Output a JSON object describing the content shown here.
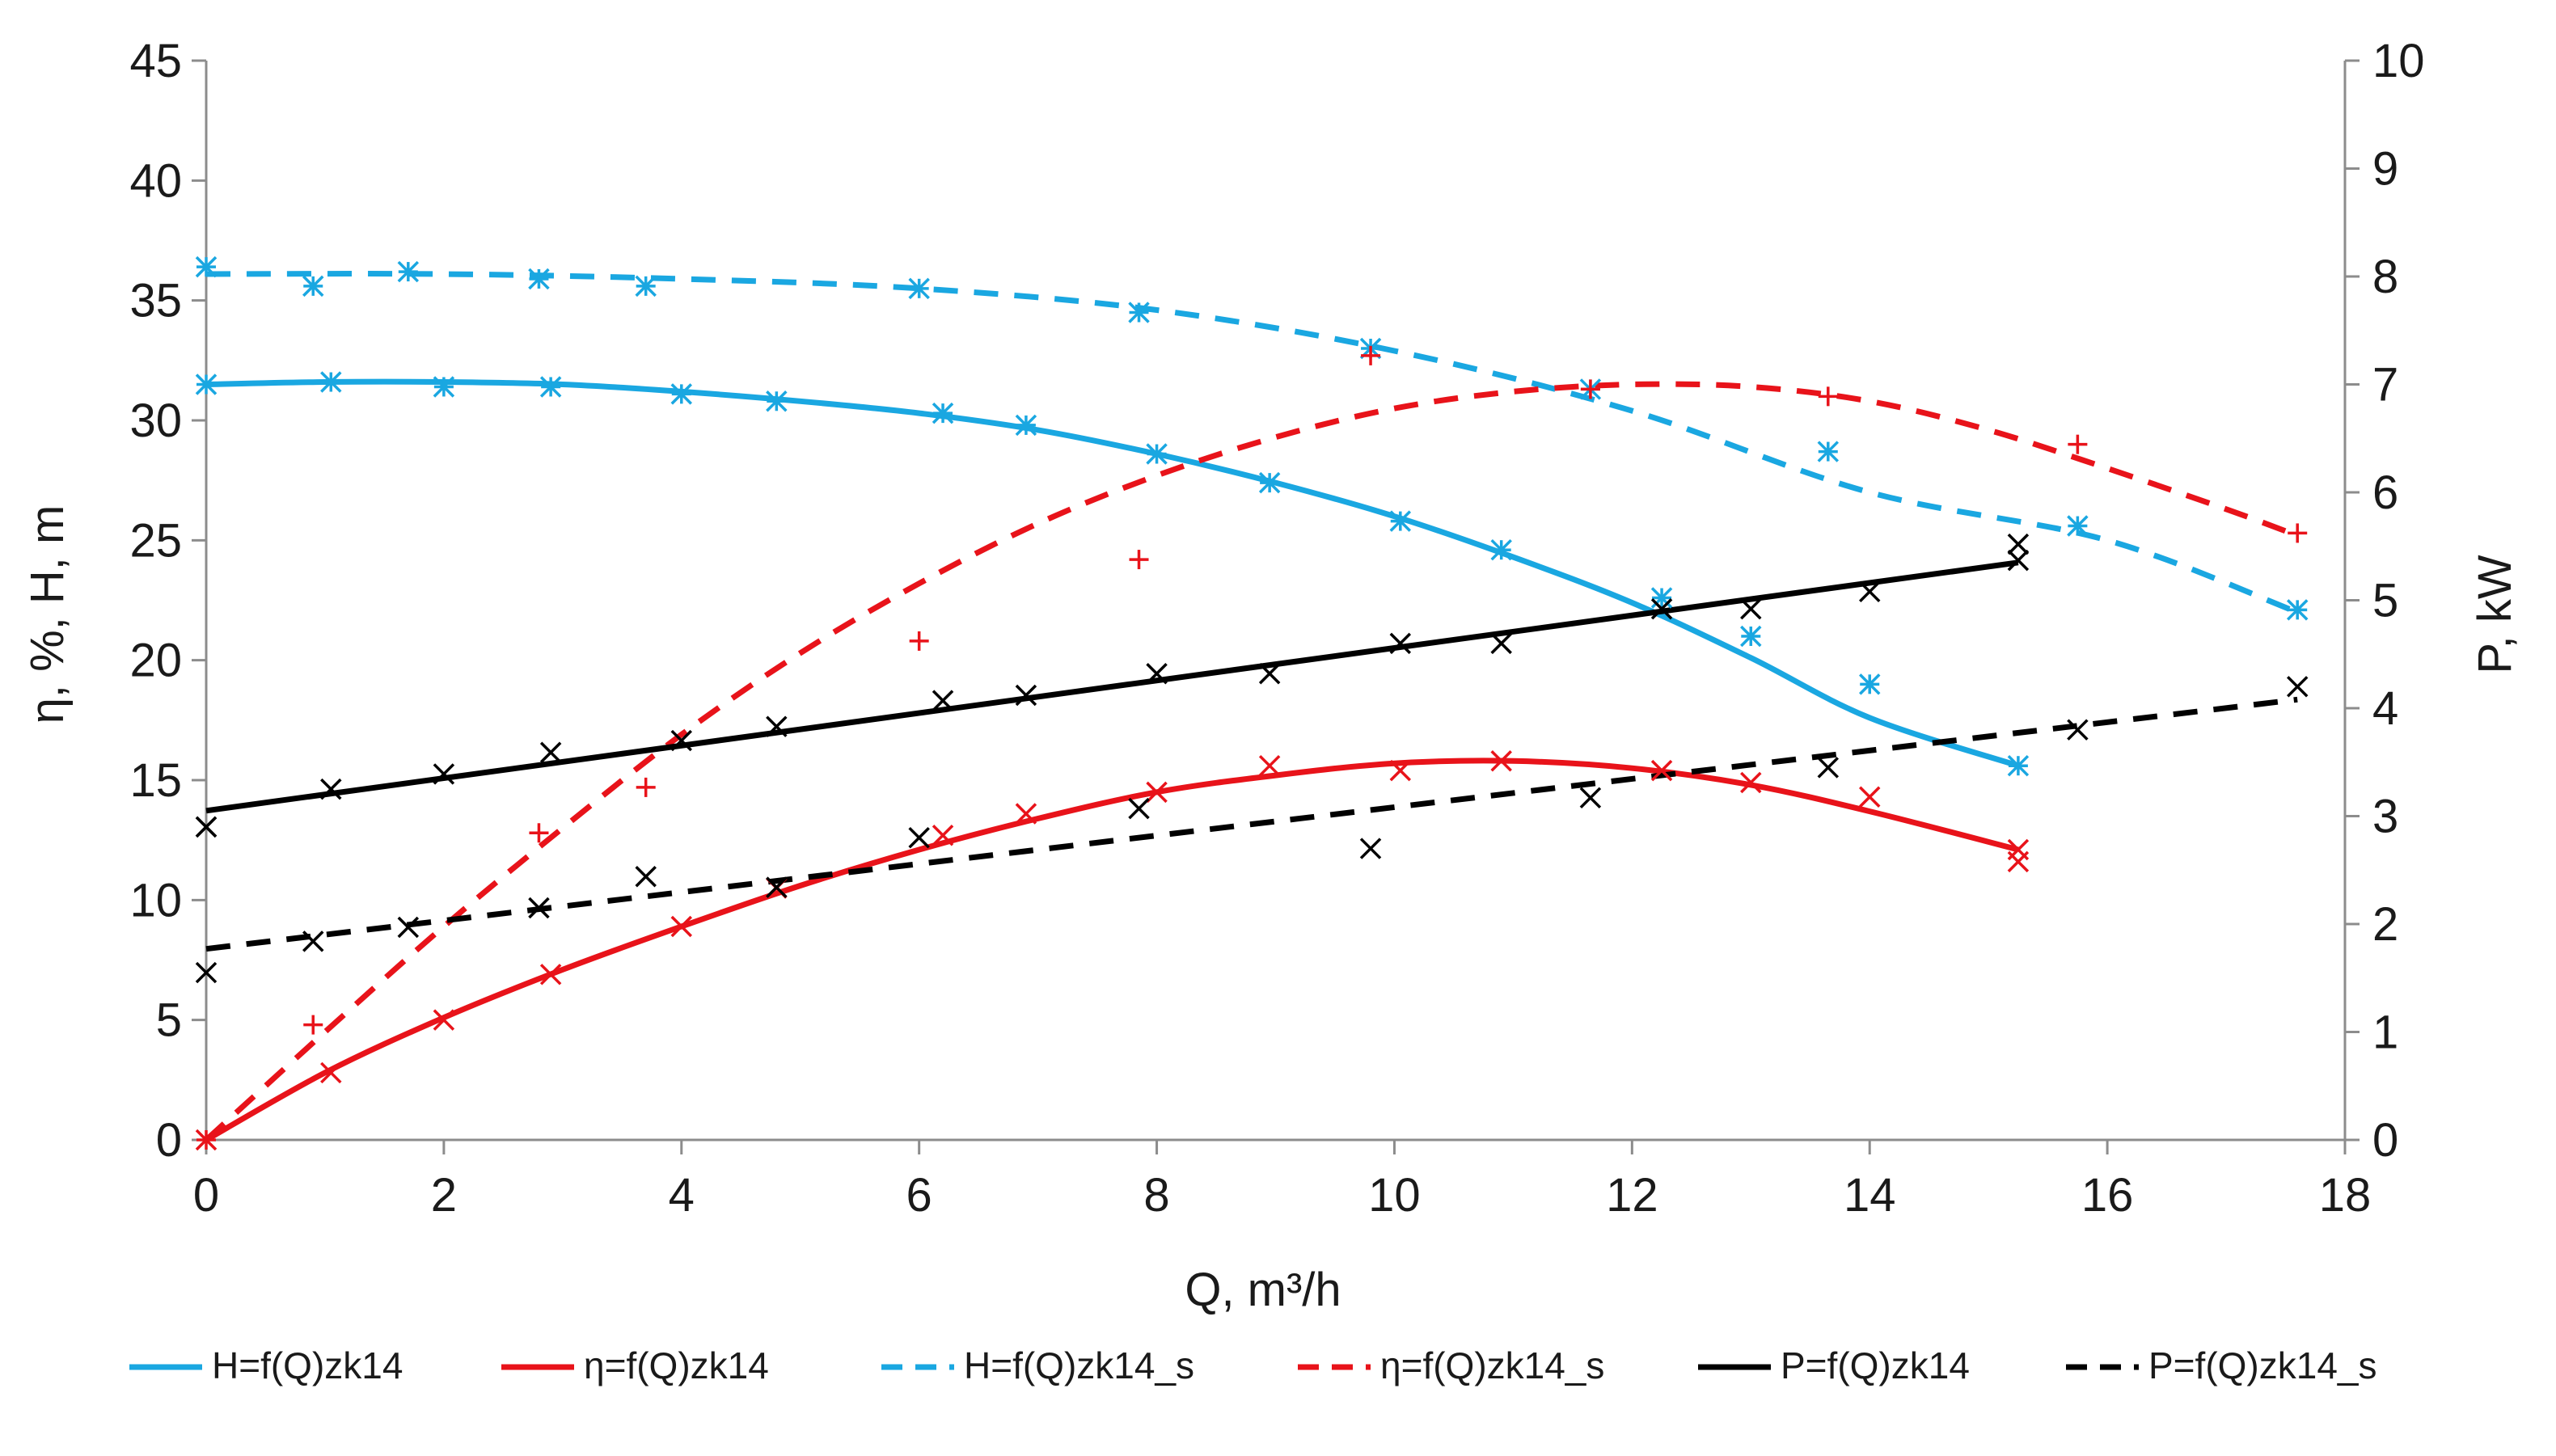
{
  "chart_data": {
    "type": "line",
    "title": "",
    "xlabel": "Q, m³/h",
    "ylabel_left": "η, %,  H, m",
    "ylabel_right": "P, kW",
    "xlim": [
      0,
      18
    ],
    "ylim_left": [
      0,
      45
    ],
    "ylim_right": [
      0,
      10
    ],
    "x_ticks": [
      0,
      2,
      4,
      6,
      8,
      10,
      12,
      14,
      16,
      18
    ],
    "y_left_ticks": [
      0,
      5,
      10,
      15,
      20,
      25,
      30,
      35,
      40,
      45
    ],
    "y_right_ticks": [
      0,
      1,
      2,
      3,
      4,
      5,
      6,
      7,
      8,
      9,
      10
    ],
    "grid": false,
    "legend_position": "bottom",
    "series": [
      {
        "name": "H=f(Q)zk14",
        "axis": "left",
        "color": "#1aa7e1",
        "dash": "solid",
        "marker": "asterisk",
        "curve": [
          [
            0,
            31.5
          ],
          [
            1,
            31.6
          ],
          [
            2,
            31.6
          ],
          [
            3,
            31.5
          ],
          [
            4,
            31.2
          ],
          [
            5,
            30.8
          ],
          [
            6,
            30.3
          ],
          [
            7,
            29.6
          ],
          [
            8,
            28.6
          ],
          [
            9,
            27.4
          ],
          [
            10,
            26.0
          ],
          [
            11,
            24.3
          ],
          [
            12,
            22.4
          ],
          [
            13,
            20.1
          ],
          [
            14,
            17.6
          ],
          [
            15.25,
            15.6
          ]
        ],
        "points": [
          [
            0,
            31.5
          ],
          [
            1.05,
            31.6
          ],
          [
            2,
            31.4
          ],
          [
            2.9,
            31.4
          ],
          [
            4,
            31.1
          ],
          [
            4.8,
            30.8
          ],
          [
            6.2,
            30.3
          ],
          [
            6.9,
            29.8
          ],
          [
            8,
            28.6
          ],
          [
            8.95,
            27.4
          ],
          [
            10.05,
            25.8
          ],
          [
            10.9,
            24.6
          ],
          [
            12.25,
            22.6
          ],
          [
            13,
            21
          ],
          [
            14,
            19
          ],
          [
            15.25,
            15.6
          ]
        ]
      },
      {
        "name": "η=f(Q)zk14",
        "axis": "left",
        "color": "#e8131a",
        "dash": "solid",
        "marker": "x",
        "curve": [
          [
            0,
            0
          ],
          [
            1,
            2.8
          ],
          [
            2,
            5.1
          ],
          [
            3,
            7.1
          ],
          [
            4,
            8.9
          ],
          [
            5,
            10.6
          ],
          [
            6,
            12.1
          ],
          [
            7,
            13.4
          ],
          [
            8,
            14.5
          ],
          [
            9,
            15.2
          ],
          [
            10,
            15.7
          ],
          [
            11,
            15.8
          ],
          [
            12,
            15.5
          ],
          [
            13,
            14.8
          ],
          [
            14,
            13.7
          ],
          [
            15.25,
            12.1
          ]
        ],
        "points": [
          [
            0,
            0
          ],
          [
            1.05,
            2.8
          ],
          [
            2,
            5
          ],
          [
            2.9,
            6.9
          ],
          [
            4,
            8.9
          ],
          [
            4.8,
            10.5
          ],
          [
            6.2,
            12.7
          ],
          [
            6.9,
            13.6
          ],
          [
            8,
            14.5
          ],
          [
            8.95,
            15.6
          ],
          [
            10.05,
            15.4
          ],
          [
            10.9,
            15.8
          ],
          [
            12.25,
            15.4
          ],
          [
            13,
            14.9
          ],
          [
            14,
            14.3
          ],
          [
            15.25,
            11.6
          ],
          [
            15.25,
            12.1
          ]
        ]
      },
      {
        "name": "H=f(Q)zk14_s",
        "axis": "left",
        "color": "#1aa7e1",
        "dash": "dashed",
        "marker": "asterisk",
        "curve": [
          [
            0,
            36.1
          ],
          [
            2,
            36.1
          ],
          [
            4,
            35.9
          ],
          [
            6,
            35.5
          ],
          [
            8,
            34.6
          ],
          [
            10,
            32.9
          ],
          [
            12,
            30.4
          ],
          [
            14,
            27.0
          ],
          [
            16,
            25.0
          ],
          [
            17.6,
            22.0
          ]
        ],
        "points": [
          [
            0,
            36.4
          ],
          [
            0.9,
            35.6
          ],
          [
            1.7,
            36.2
          ],
          [
            2.8,
            35.9
          ],
          [
            3.7,
            35.6
          ],
          [
            6,
            35.5
          ],
          [
            7.85,
            34.5
          ],
          [
            9.8,
            33
          ],
          [
            11.65,
            31.3
          ],
          [
            13.65,
            28.7
          ],
          [
            15.75,
            25.6
          ],
          [
            17.6,
            22.1
          ]
        ]
      },
      {
        "name": "η=f(Q)zk14_s",
        "axis": "left",
        "color": "#e8131a",
        "dash": "dashed",
        "marker": "plus",
        "curve": [
          [
            0,
            0
          ],
          [
            1,
            4.5
          ],
          [
            2,
            8.9
          ],
          [
            3,
            13
          ],
          [
            4,
            16.9
          ],
          [
            5,
            20.3
          ],
          [
            6,
            23.2
          ],
          [
            7,
            25.7
          ],
          [
            8,
            27.7
          ],
          [
            9,
            29.3
          ],
          [
            10,
            30.5
          ],
          [
            11,
            31.2
          ],
          [
            12,
            31.5
          ],
          [
            13,
            31.4
          ],
          [
            14,
            30.8
          ],
          [
            15,
            29.6
          ],
          [
            16,
            28
          ],
          [
            17,
            26.3
          ],
          [
            17.6,
            25.2
          ]
        ],
        "points": [
          [
            0,
            0
          ],
          [
            0.9,
            4.8
          ],
          [
            2.8,
            12.8
          ],
          [
            3.7,
            14.7
          ],
          [
            6,
            20.8
          ],
          [
            7.85,
            24.2
          ],
          [
            9.8,
            32.7
          ],
          [
            11.65,
            31.3
          ],
          [
            13.65,
            31
          ],
          [
            15.75,
            29
          ],
          [
            17.6,
            25.3
          ]
        ]
      },
      {
        "name": "P=f(Q)zk14",
        "axis": "right",
        "color": "#000000",
        "dash": "solid",
        "marker": "x",
        "curve": [
          [
            0,
            3.05
          ],
          [
            15.25,
            5.35
          ]
        ],
        "points": [
          [
            0,
            2.9
          ],
          [
            1.05,
            3.25
          ],
          [
            2,
            3.39
          ],
          [
            2.9,
            3.59
          ],
          [
            4,
            3.7
          ],
          [
            4.8,
            3.83
          ],
          [
            6.2,
            4.07
          ],
          [
            6.9,
            4.12
          ],
          [
            8,
            4.32
          ],
          [
            8.95,
            4.32
          ],
          [
            10.05,
            4.6
          ],
          [
            10.9,
            4.6
          ],
          [
            12.25,
            4.92
          ],
          [
            13,
            4.92
          ],
          [
            14,
            5.08
          ],
          [
            15.25,
            5.52
          ],
          [
            15.25,
            5.37
          ]
        ]
      },
      {
        "name": "P=f(Q)zk14_s",
        "axis": "right",
        "color": "#000000",
        "dash": "dashed",
        "marker": "x",
        "curve": [
          [
            0,
            1.77
          ],
          [
            17.6,
            4.08
          ]
        ],
        "points": [
          [
            0,
            1.55
          ],
          [
            0,
            2.9
          ],
          [
            0.9,
            1.84
          ],
          [
            1.7,
            1.97
          ],
          [
            2.8,
            2.15
          ],
          [
            3.7,
            2.44
          ],
          [
            4.8,
            2.34
          ],
          [
            6,
            2.8
          ],
          [
            7.85,
            3.07
          ],
          [
            9.8,
            2.7
          ],
          [
            11.65,
            3.17
          ],
          [
            13.65,
            3.45
          ],
          [
            15.75,
            3.8
          ],
          [
            17.6,
            4.2
          ]
        ]
      }
    ]
  }
}
